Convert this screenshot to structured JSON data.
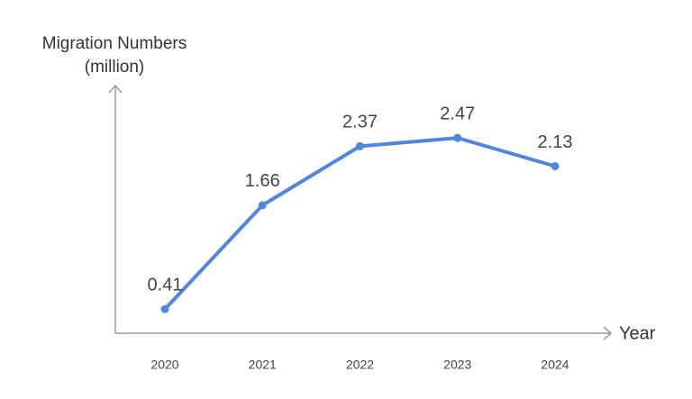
{
  "chart_data": {
    "type": "line",
    "y_label": "Migration Numbers (million)",
    "x_label": "Year",
    "categories": [
      "2020",
      "2021",
      "2022",
      "2023",
      "2024"
    ],
    "values": [
      0.41,
      1.66,
      2.37,
      2.47,
      2.13
    ],
    "color": "#4f86de",
    "ylim": [
      0.12,
      3.1
    ],
    "data_labels": true
  }
}
